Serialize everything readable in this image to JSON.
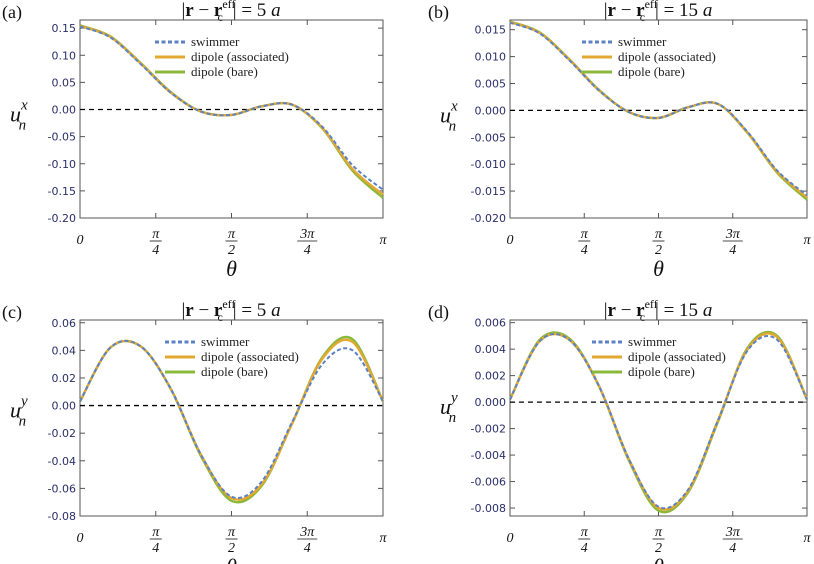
{
  "chart_data": [
    {
      "panel_label": "(a)",
      "type": "line",
      "title": "|r − r_c^eff| = 5 a",
      "title_math": {
        "lhs": "|",
        "r": "r",
        "minus": " − ",
        "rc": "r",
        "sub": "c",
        "sup": "eff",
        "rhs": "| = 5 ",
        "unit": "a"
      },
      "ylabel_main": "u",
      "ylabel_sub": "n",
      "ylabel_sup": "x",
      "xlabel": "θ",
      "xlim": [
        0,
        3.14159
      ],
      "ylim": [
        -0.2,
        0.165
      ],
      "xticks": [
        "0",
        "π/4",
        "π/2",
        "3π/4",
        "π"
      ],
      "yticks": [
        "0.15",
        "0.10",
        "0.05",
        "0.00",
        "-0.05",
        "-0.10",
        "-0.15",
        "-0.20"
      ],
      "ytick_values": [
        0.15,
        0.1,
        0.05,
        0.0,
        -0.05,
        -0.1,
        -0.15,
        -0.2
      ],
      "zero_line": true,
      "x": [
        0,
        0.314,
        0.628,
        0.942,
        1.257,
        1.571,
        1.885,
        2.199,
        2.513,
        2.827,
        3.142
      ],
      "series": [
        {
          "name": "swimmer",
          "values": [
            0.153,
            0.133,
            0.084,
            0.031,
            -0.004,
            -0.01,
            0.006,
            0.009,
            -0.032,
            -0.103,
            -0.148
          ]
        },
        {
          "name": "dipole (associated)",
          "values": [
            0.154,
            0.134,
            0.085,
            0.031,
            -0.004,
            -0.01,
            0.006,
            0.009,
            -0.034,
            -0.11,
            -0.157
          ]
        },
        {
          "name": "dipole (bare)",
          "values": [
            0.155,
            0.135,
            0.086,
            0.032,
            -0.004,
            -0.01,
            0.006,
            0.009,
            -0.035,
            -0.113,
            -0.163
          ]
        }
      ],
      "legend_position": "top-right"
    },
    {
      "panel_label": "(b)",
      "type": "line",
      "title": "|r − r_c^eff| = 15 a",
      "title_math": {
        "lhs": "|",
        "r": "r",
        "minus": " − ",
        "rc": "r",
        "sub": "c",
        "sup": "eff",
        "rhs": "| = 15 ",
        "unit": "a"
      },
      "ylabel_main": "u",
      "ylabel_sub": "n",
      "ylabel_sup": "x",
      "xlabel": "θ",
      "xlim": [
        0,
        3.14159
      ],
      "ylim": [
        -0.02,
        0.0168
      ],
      "xticks": [
        "0",
        "π/4",
        "π/2",
        "3π/4",
        "π"
      ],
      "yticks": [
        "0.015",
        "0.010",
        "0.005",
        "0.000",
        "-0.005",
        "-0.010",
        "-0.015",
        "-0.020"
      ],
      "ytick_values": [
        0.015,
        0.01,
        0.005,
        0.0,
        -0.005,
        -0.01,
        -0.015,
        -0.02
      ],
      "zero_line": true,
      "x": [
        0,
        0.314,
        0.628,
        0.942,
        1.257,
        1.571,
        1.885,
        2.199,
        2.513,
        2.827,
        3.142
      ],
      "series": [
        {
          "name": "swimmer",
          "values": [
            0.0163,
            0.0143,
            0.0093,
            0.0037,
            -0.0003,
            -0.0014,
            0.0006,
            0.0012,
            -0.004,
            -0.0112,
            -0.0158
          ]
        },
        {
          "name": "dipole (associated)",
          "values": [
            0.0164,
            0.0144,
            0.0094,
            0.0037,
            -0.0003,
            -0.0014,
            0.0006,
            0.0012,
            -0.0041,
            -0.0114,
            -0.0162
          ]
        },
        {
          "name": "dipole (bare)",
          "values": [
            0.0165,
            0.0145,
            0.0095,
            0.0038,
            -0.0003,
            -0.0014,
            0.0006,
            0.0012,
            -0.0042,
            -0.0116,
            -0.0166
          ]
        }
      ],
      "legend_position": "top-right"
    },
    {
      "panel_label": "(c)",
      "type": "line",
      "title": "|r − r_c^eff| = 5 a",
      "title_math": {
        "lhs": "|",
        "r": "r",
        "minus": " − ",
        "rc": "r",
        "sub": "c",
        "sup": "eff",
        "rhs": "| = 5 ",
        "unit": "a"
      },
      "ylabel_main": "u",
      "ylabel_sub": "n",
      "ylabel_sup": "y",
      "xlabel": "θ",
      "xlim": [
        0,
        3.14159
      ],
      "ylim": [
        -0.08,
        0.062
      ],
      "xticks": [
        "0",
        "π/4",
        "π/2",
        "3π/4",
        "π"
      ],
      "yticks": [
        "0.06",
        "0.04",
        "0.02",
        "0.00",
        "-0.02",
        "-0.04",
        "-0.06",
        "-0.08"
      ],
      "ytick_values": [
        0.06,
        0.04,
        0.02,
        0.0,
        -0.02,
        -0.04,
        -0.06,
        -0.08
      ],
      "zero_line": true,
      "x": [
        0,
        0.314,
        0.628,
        0.942,
        1.257,
        1.571,
        1.885,
        2.199,
        2.513,
        2.827,
        3.142
      ],
      "series": [
        {
          "name": "swimmer",
          "values": [
            0.003,
            0.042,
            0.043,
            0.012,
            -0.036,
            -0.066,
            -0.055,
            -0.012,
            0.03,
            0.04,
            0.003
          ]
        },
        {
          "name": "dipole (associated)",
          "values": [
            0.003,
            0.042,
            0.043,
            0.012,
            -0.036,
            -0.067,
            -0.057,
            -0.013,
            0.034,
            0.046,
            0.003
          ]
        },
        {
          "name": "dipole (bare)",
          "values": [
            0.003,
            0.042,
            0.043,
            0.012,
            -0.037,
            -0.069,
            -0.058,
            -0.013,
            0.035,
            0.048,
            0.003
          ]
        }
      ],
      "legend_position": "top-center"
    },
    {
      "panel_label": "(d)",
      "type": "line",
      "title": "|r − r_c^eff| = 15 a",
      "title_math": {
        "lhs": "|",
        "r": "r",
        "minus": " − ",
        "rc": "r",
        "sub": "c",
        "sup": "eff",
        "rhs": "| = 15 ",
        "unit": "a"
      },
      "ylabel_main": "u",
      "ylabel_sub": "n",
      "ylabel_sup": "y",
      "xlabel": "θ",
      "xlim": [
        0,
        3.14159
      ],
      "ylim": [
        -0.0086,
        0.0062
      ],
      "xticks": [
        "0",
        "π/4",
        "π/2",
        "3π/4",
        "π"
      ],
      "yticks": [
        "0.006",
        "0.004",
        "0.002",
        "0.000",
        "-0.002",
        "-0.004",
        "-0.006",
        "-0.008"
      ],
      "ytick_values": [
        0.006,
        0.004,
        0.002,
        0.0,
        -0.002,
        -0.004,
        -0.006,
        -0.008
      ],
      "zero_line": true,
      "x": [
        0,
        0.314,
        0.628,
        0.942,
        1.257,
        1.571,
        1.885,
        2.199,
        2.513,
        2.827,
        3.142
      ],
      "series": [
        {
          "name": "swimmer",
          "values": [
            0.0002,
            0.0046,
            0.0047,
            0.0012,
            -0.0043,
            -0.0079,
            -0.0066,
            -0.0014,
            0.0039,
            0.0047,
            0.0002
          ]
        },
        {
          "name": "dipole (associated)",
          "values": [
            0.0002,
            0.0046,
            0.0047,
            0.0012,
            -0.0043,
            -0.008,
            -0.0067,
            -0.0014,
            0.004,
            0.0049,
            0.0002
          ]
        },
        {
          "name": "dipole (bare)",
          "values": [
            0.0002,
            0.0047,
            0.0048,
            0.0012,
            -0.0044,
            -0.0082,
            -0.0068,
            -0.0015,
            0.0041,
            0.005,
            0.0002
          ]
        }
      ],
      "legend_position": "top-center"
    }
  ],
  "style": {
    "series_colors": [
      "#5b82c4",
      "#e3a830",
      "#8ab83a"
    ],
    "series_dashed": [
      true,
      false,
      false
    ],
    "zero_line_color": "#000000"
  }
}
